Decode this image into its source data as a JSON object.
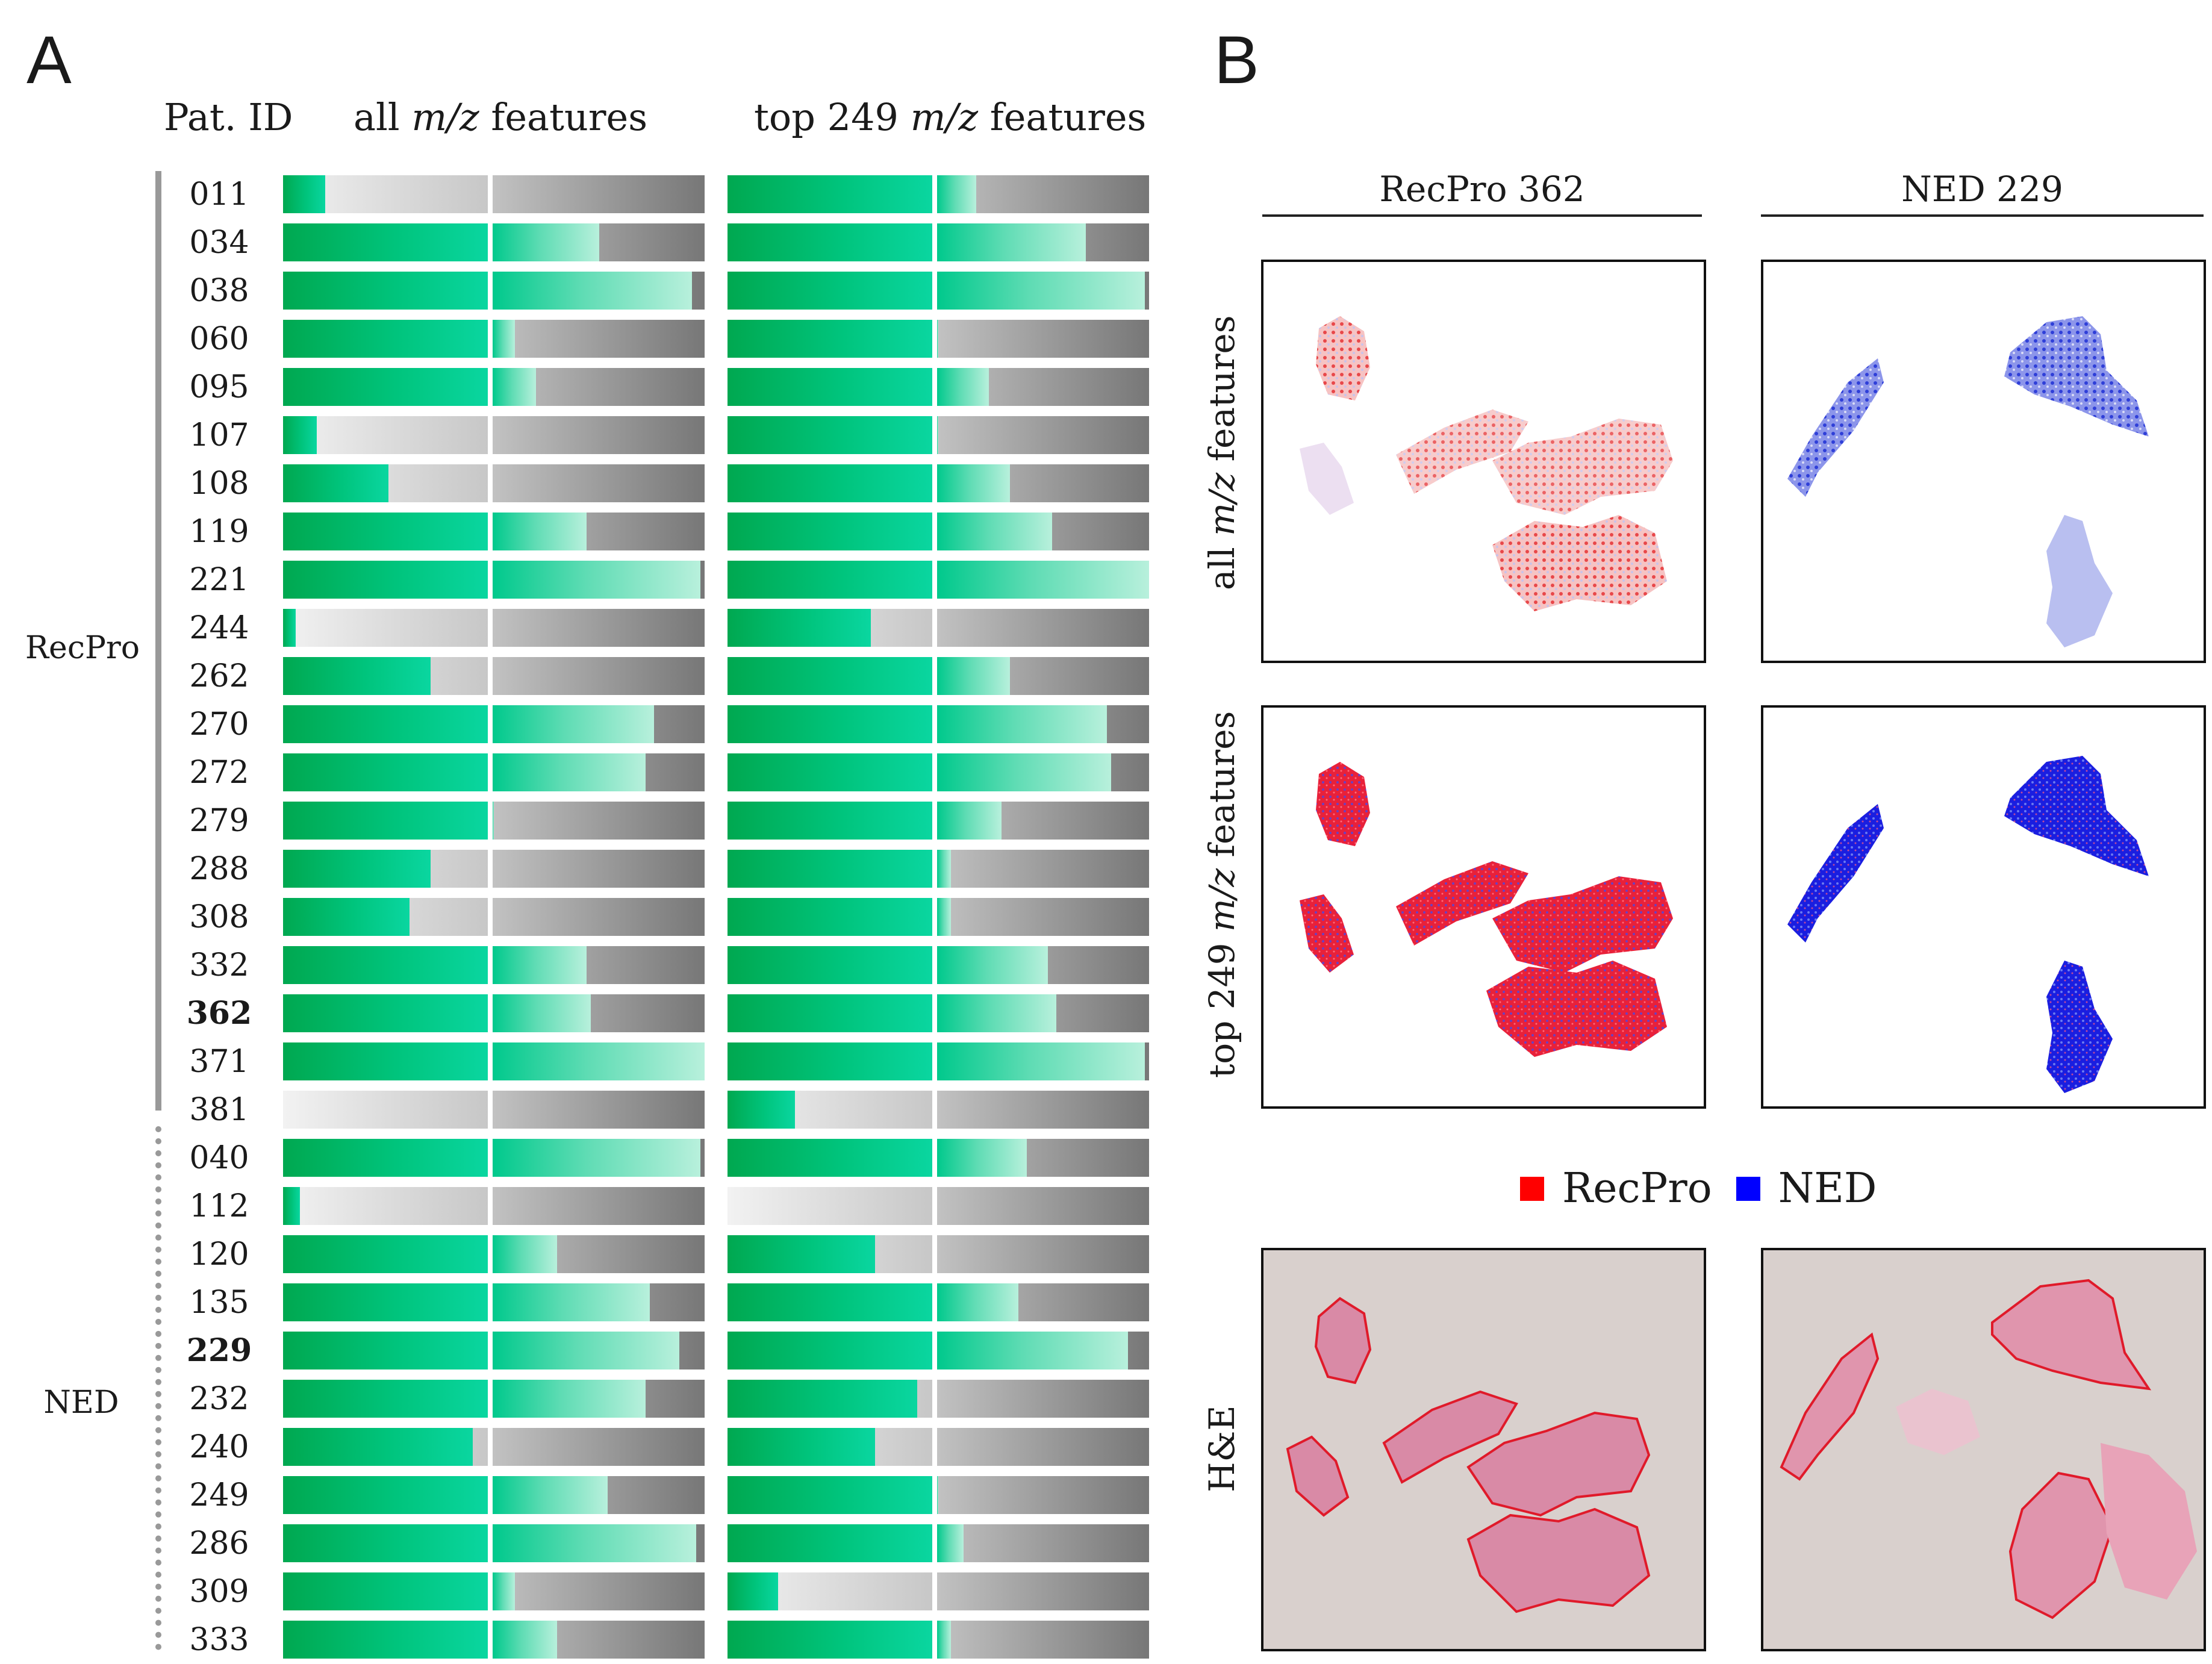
{
  "panel_a": {
    "letter": "A",
    "header": {
      "pat_id": "Pat. ID",
      "all_pre": "all ",
      "all_mz": "m/z",
      "all_post": " features",
      "top_pre": "top 249 ",
      "top_mz": "m/z",
      "top_post": " features"
    },
    "group_labels": {
      "recpro": "RecPro",
      "ned": "NED"
    },
    "rows": [
      {
        "id": "011",
        "group": "RecPro",
        "bold": false,
        "all": 0.1,
        "top": 0.59
      },
      {
        "id": "034",
        "group": "RecPro",
        "bold": false,
        "all": 0.75,
        "top": 0.85
      },
      {
        "id": "038",
        "group": "RecPro",
        "bold": false,
        "all": 0.97,
        "top": 0.99
      },
      {
        "id": "060",
        "group": "RecPro",
        "bold": false,
        "all": 0.55,
        "top": 0.5
      },
      {
        "id": "095",
        "group": "RecPro",
        "bold": false,
        "all": 0.6,
        "top": 0.62
      },
      {
        "id": "107",
        "group": "RecPro",
        "bold": false,
        "all": 0.08,
        "top": 0.5
      },
      {
        "id": "108",
        "group": "RecPro",
        "bold": false,
        "all": 0.25,
        "top": 0.67
      },
      {
        "id": "119",
        "group": "RecPro",
        "bold": false,
        "all": 0.72,
        "top": 0.77
      },
      {
        "id": "221",
        "group": "RecPro",
        "bold": false,
        "all": 0.99,
        "top": 1.0
      },
      {
        "id": "244",
        "group": "RecPro",
        "bold": false,
        "all": 0.03,
        "top": 0.34
      },
      {
        "id": "262",
        "group": "RecPro",
        "bold": false,
        "all": 0.35,
        "top": 0.67
      },
      {
        "id": "270",
        "group": "RecPro",
        "bold": false,
        "all": 0.88,
        "top": 0.9
      },
      {
        "id": "272",
        "group": "RecPro",
        "bold": false,
        "all": 0.86,
        "top": 0.91
      },
      {
        "id": "279",
        "group": "RecPro",
        "bold": false,
        "all": 0.5,
        "top": 0.65
      },
      {
        "id": "288",
        "group": "RecPro",
        "bold": false,
        "all": 0.35,
        "top": 0.53
      },
      {
        "id": "308",
        "group": "RecPro",
        "bold": false,
        "all": 0.3,
        "top": 0.53
      },
      {
        "id": "332",
        "group": "RecPro",
        "bold": false,
        "all": 0.72,
        "top": 0.76
      },
      {
        "id": "362",
        "group": "RecPro",
        "bold": true,
        "all": 0.73,
        "top": 0.78
      },
      {
        "id": "371",
        "group": "RecPro",
        "bold": false,
        "all": 1.0,
        "top": 0.99
      },
      {
        "id": "381",
        "group": "RecPro",
        "bold": false,
        "all": 0.0,
        "top": 0.16
      },
      {
        "id": "040",
        "group": "NED",
        "bold": false,
        "all": 0.99,
        "top": 0.71
      },
      {
        "id": "112",
        "group": "NED",
        "bold": false,
        "all": 0.04,
        "top": 0.0
      },
      {
        "id": "120",
        "group": "NED",
        "bold": false,
        "all": 0.65,
        "top": 0.35
      },
      {
        "id": "135",
        "group": "NED",
        "bold": false,
        "all": 0.87,
        "top": 0.69
      },
      {
        "id": "229",
        "group": "NED",
        "bold": true,
        "all": 0.94,
        "top": 0.95
      },
      {
        "id": "232",
        "group": "NED",
        "bold": false,
        "all": 0.86,
        "top": 0.45
      },
      {
        "id": "240",
        "group": "NED",
        "bold": false,
        "all": 0.45,
        "top": 0.35
      },
      {
        "id": "249",
        "group": "NED",
        "bold": false,
        "all": 0.77,
        "top": 0.5
      },
      {
        "id": "286",
        "group": "NED",
        "bold": false,
        "all": 0.98,
        "top": 0.56
      },
      {
        "id": "309",
        "group": "NED",
        "bold": false,
        "all": 0.55,
        "top": 0.12
      },
      {
        "id": "333",
        "group": "NED",
        "bold": false,
        "all": 0.65,
        "top": 0.53
      }
    ]
  },
  "panel_b": {
    "letter": "B",
    "columns": {
      "left": "RecPro 362",
      "right": "NED 229"
    },
    "row_labels": {
      "all_pre": "all ",
      "all_mz": "m/z",
      "all_post": " features",
      "top_pre": "top 249 ",
      "top_mz": "m/z",
      "top_post": " features",
      "he": "H&E"
    },
    "legend": {
      "recpro": "RecPro",
      "ned": "NED"
    },
    "colors": {
      "recpro": "#ff0000",
      "ned": "#0000ff",
      "he_bg": "#d9d0cd",
      "tissue": "#d98aa6"
    }
  }
}
